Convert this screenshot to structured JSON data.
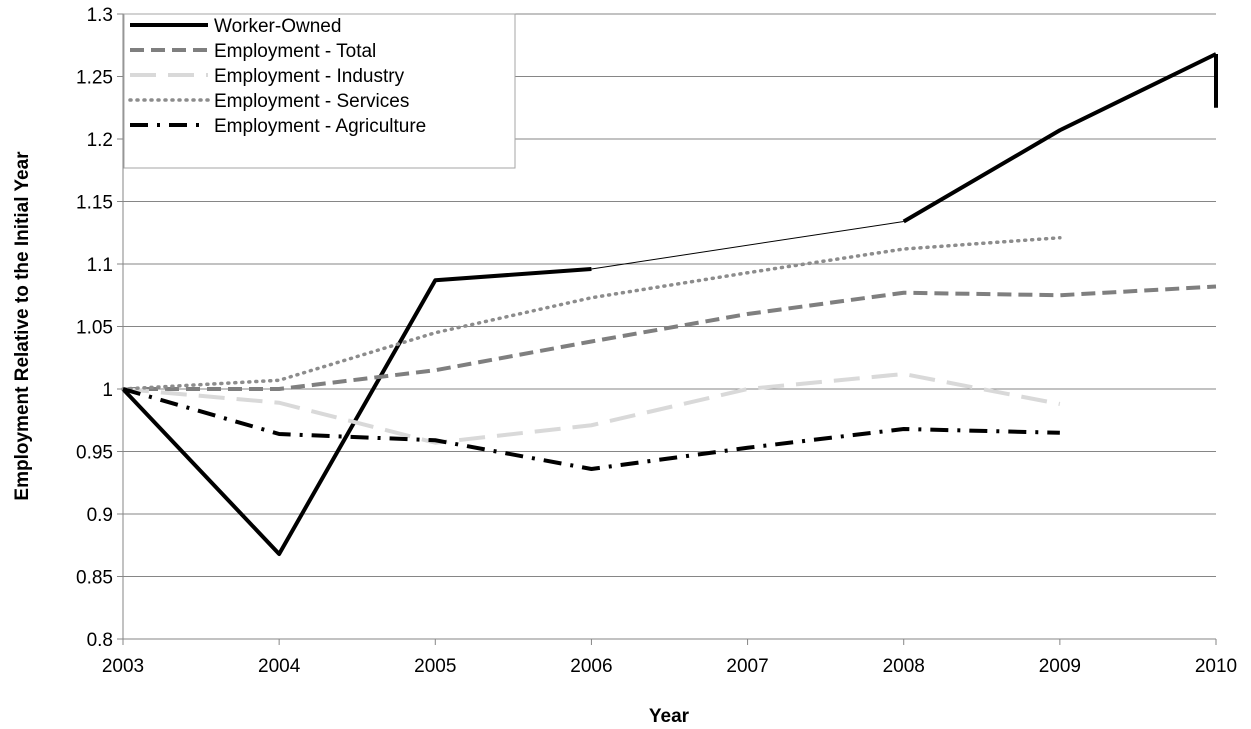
{
  "chart_data": {
    "type": "line",
    "xlabel": "Year",
    "ylabel": "Employment Relative to the Initial Year",
    "ylim": [
      0.8,
      1.3
    ],
    "y_ticks": [
      0.8,
      0.85,
      0.9,
      0.95,
      1,
      1.05,
      1.1,
      1.15,
      1.2,
      1.25,
      1.3
    ],
    "x_ticks": [
      "2003",
      "2004",
      "2005",
      "2006",
      "2007",
      "2008",
      "2009",
      "2010"
    ],
    "grid": "horizontal",
    "legend_position": "top-left",
    "series": [
      {
        "name": "Worker-Owned",
        "color": "#000000",
        "style": "solid-thick",
        "x": [
          "2003",
          "2004",
          "2005",
          "2006",
          "2008",
          "2009",
          "2010"
        ],
        "values": [
          1.0,
          0.868,
          1.087,
          1.096,
          1.134,
          1.207,
          1.268
        ],
        "gap_between": [
          "2006",
          "2008"
        ]
      },
      {
        "name": "Employment - Total",
        "color": "#7f7f7f",
        "style": "dashed",
        "x": [
          "2003",
          "2004",
          "2005",
          "2006",
          "2007",
          "2008",
          "2009",
          "2010"
        ],
        "values": [
          1.0,
          1.0,
          1.015,
          1.038,
          1.06,
          1.077,
          1.075,
          1.082
        ]
      },
      {
        "name": "Employment - Industry",
        "color": "#d9d9d9",
        "style": "long-dashed",
        "x": [
          "2003",
          "2004",
          "2005",
          "2006",
          "2007",
          "2008",
          "2009"
        ],
        "values": [
          1.0,
          0.989,
          0.957,
          0.971,
          1.0,
          1.012,
          0.988
        ]
      },
      {
        "name": "Employment - Services",
        "color": "#8c8c8c",
        "style": "dotted",
        "x": [
          "2003",
          "2004",
          "2005",
          "2006",
          "2007",
          "2008",
          "2009"
        ],
        "values": [
          1.0,
          1.007,
          1.045,
          1.073,
          1.093,
          1.112,
          1.121
        ]
      },
      {
        "name": "Employment - Agriculture",
        "color": "#000000",
        "style": "dash-dot",
        "x": [
          "2003",
          "2004",
          "2005",
          "2006",
          "2007",
          "2008",
          "2009"
        ],
        "values": [
          1.0,
          0.964,
          0.959,
          0.936,
          0.953,
          0.968,
          0.965
        ]
      }
    ]
  }
}
